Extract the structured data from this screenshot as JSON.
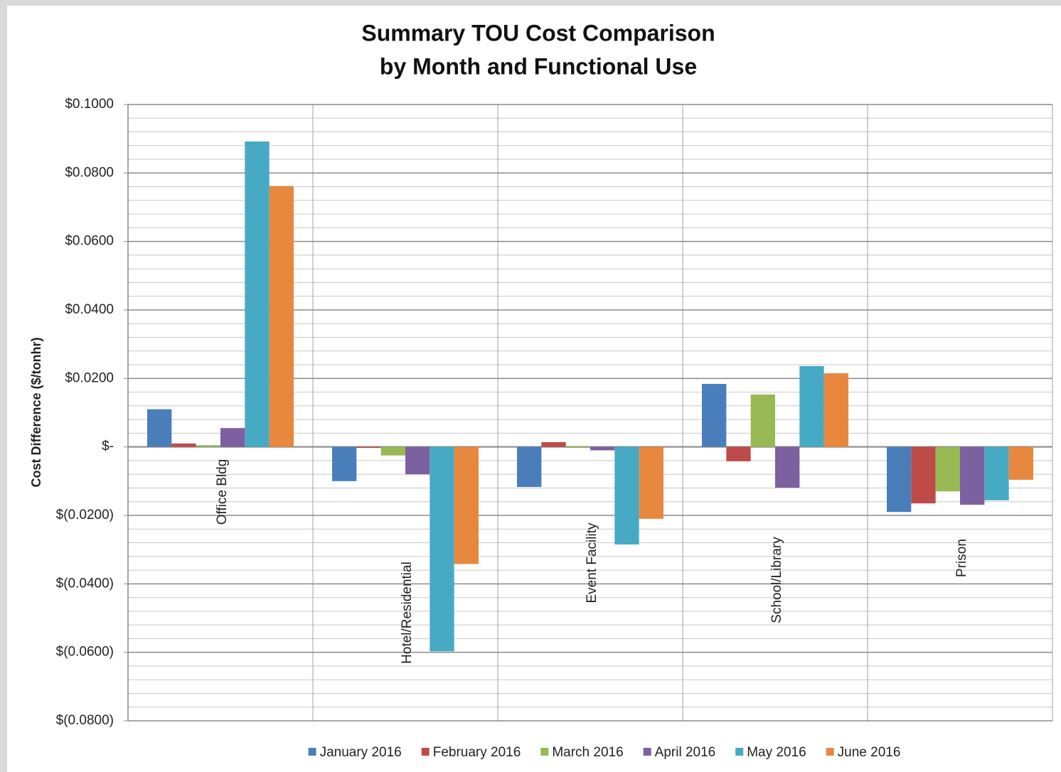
{
  "chart_data": {
    "type": "bar",
    "title": [
      "Summary TOU Cost Comparison",
      "by Month and Functional Use"
    ],
    "y_label": "Cost Difference ($/tonhr)",
    "categories": [
      "Office Bldg",
      "Hotel/Residential",
      "Event Facility",
      "School/Library",
      "Prison"
    ],
    "series": [
      {
        "name": "January 2016",
        "color": "#4a7ebb",
        "values": [
          0.011,
          -0.01,
          -0.0117,
          0.0184,
          -0.019
        ]
      },
      {
        "name": "February 2016",
        "color": "#be4b48",
        "values": [
          0.001,
          -0.0003,
          0.0014,
          -0.0042,
          -0.0165
        ]
      },
      {
        "name": "March 2016",
        "color": "#98b954",
        "values": [
          0.0005,
          -0.0025,
          -0.0003,
          0.0153,
          -0.013
        ]
      },
      {
        "name": "April 2016",
        "color": "#7d60a0",
        "values": [
          0.0055,
          -0.008,
          -0.001,
          -0.0119,
          -0.0169
        ]
      },
      {
        "name": "May 2016",
        "color": "#46aac5",
        "values": [
          0.0892,
          -0.0597,
          -0.0285,
          0.0236,
          -0.0156
        ]
      },
      {
        "name": "June 2016",
        "color": "#e8883f",
        "values": [
          0.0762,
          -0.0342,
          -0.021,
          0.0215,
          -0.0096
        ]
      }
    ],
    "ylim": [
      -0.08,
      0.1
    ],
    "yticks": [
      {
        "value": -0.08,
        "label": "$(0.0800)"
      },
      {
        "value": -0.06,
        "label": "$(0.0600)"
      },
      {
        "value": -0.04,
        "label": "$(0.0400)"
      },
      {
        "value": -0.02,
        "label": "$(0.0200)"
      },
      {
        "value": 0,
        "label": "$-"
      },
      {
        "value": 0.02,
        "label": "$0.0200"
      },
      {
        "value": 0.04,
        "label": "$0.0400"
      },
      {
        "value": 0.06,
        "label": "$0.0600"
      },
      {
        "value": 0.08,
        "label": "$0.0800"
      },
      {
        "value": 0.1,
        "label": "$0.1000"
      }
    ],
    "minor_yticks": [
      -0.076,
      -0.072,
      -0.068,
      -0.064,
      -0.056,
      -0.052,
      -0.048,
      -0.044,
      -0.036,
      -0.032,
      -0.028,
      -0.024,
      -0.016,
      -0.012,
      -0.008,
      -0.004,
      0.004,
      0.008,
      0.012,
      0.016,
      0.024,
      0.028,
      0.032,
      0.036,
      0.044,
      0.048,
      0.052,
      0.056,
      0.064,
      0.068,
      0.072,
      0.076,
      0.084,
      0.088,
      0.092,
      0.096
    ],
    "grid": true,
    "legend": "bottom"
  }
}
